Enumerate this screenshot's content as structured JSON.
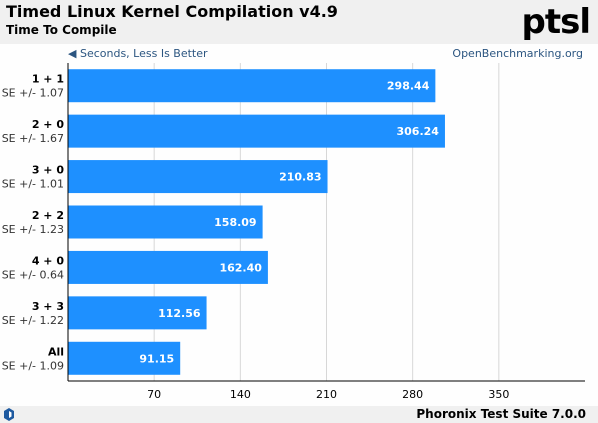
{
  "header": {
    "title": "Timed Linux Kernel Compilation v4.9",
    "subtitle": "Time To Compile",
    "logo_text": "ptsl"
  },
  "footer": {
    "text": "Phoronix Test Suite 7.0.0"
  },
  "notes": {
    "direction": "◀ Seconds, Less Is Better",
    "source": "OpenBenchmarking.org"
  },
  "colors": {
    "bar": "#1e90ff",
    "header_bg": "#f0f0f0",
    "grid": "#d7d7d7"
  },
  "chart_data": {
    "type": "bar",
    "orientation": "horizontal",
    "title": "Timed Linux Kernel Compilation v4.9",
    "subtitle": "Time To Compile",
    "xlabel": "Seconds, Less Is Better",
    "categories": [
      "1 + 1",
      "2 + 0",
      "3 + 0",
      "2 + 2",
      "4 + 0",
      "3 + 3",
      "All"
    ],
    "se_labels": [
      "SE +/- 1.07",
      "SE +/- 1.67",
      "SE +/- 1.01",
      "SE +/- 1.23",
      "SE +/- 0.64",
      "SE +/- 1.22",
      "SE +/- 1.09"
    ],
    "values": [
      298.44,
      306.24,
      210.83,
      158.09,
      162.4,
      112.56,
      91.15
    ],
    "value_labels": [
      "298.44",
      "306.24",
      "210.83",
      "158.09",
      "162.40",
      "112.56",
      "91.15"
    ],
    "xlim": [
      0,
      420
    ],
    "xticks": [
      70,
      140,
      210,
      280,
      350
    ],
    "grid": true
  }
}
